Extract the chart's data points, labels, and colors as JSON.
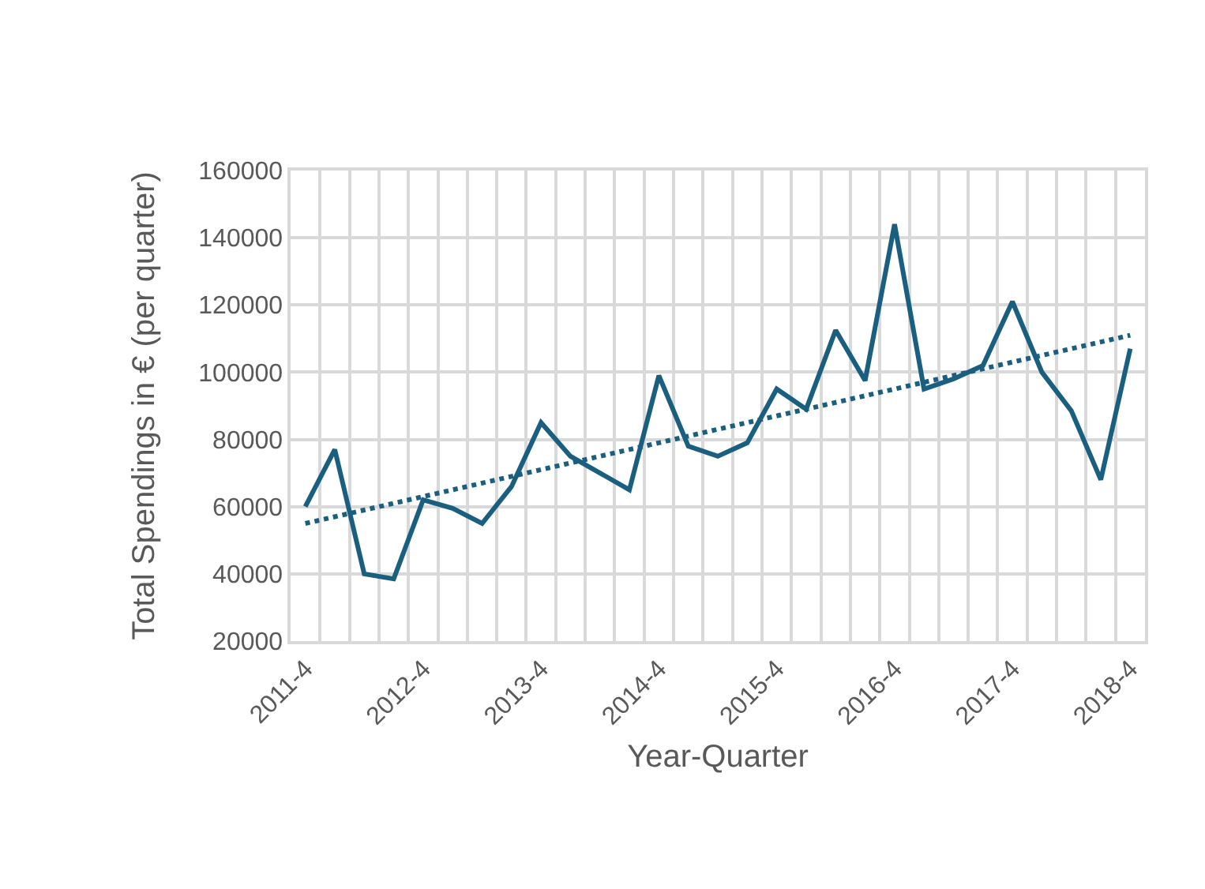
{
  "chart_data": {
    "type": "line",
    "xlabel": "Year-Quarter",
    "ylabel": "Total Spendings in € (per quarter)",
    "categories": [
      "2011-4",
      null,
      null,
      null,
      "2012-4",
      null,
      null,
      null,
      "2013-4",
      null,
      null,
      null,
      "2014-4",
      null,
      null,
      null,
      "2015-4",
      null,
      null,
      null,
      "2016-4",
      null,
      null,
      null,
      "2017-4",
      null,
      null,
      null,
      "2018-4"
    ],
    "series": [
      {
        "color": "#1a5e80",
        "line_style": "solid",
        "values": [
          60000,
          77000,
          40000,
          38500,
          62000,
          59500,
          55000,
          66000,
          85000,
          75000,
          70000,
          65000,
          99000,
          78000,
          75000,
          79000,
          95000,
          89000,
          112500,
          97500,
          144000,
          95000,
          98000,
          102000,
          121000,
          100000,
          88500,
          68000,
          107000
        ]
      },
      {
        "color": "#1a5e80",
        "line_style": "dotted",
        "values": [
          55000,
          57000,
          59000,
          61000,
          63000,
          65000,
          67000,
          69000,
          71000,
          73000,
          75000,
          77000,
          79000,
          81000,
          83000,
          85000,
          87000,
          89000,
          91000,
          93000,
          95000,
          97000,
          99000,
          101000,
          103000,
          105000,
          107000,
          109000,
          111000
        ]
      }
    ],
    "ylim": [
      20000,
      160000
    ],
    "yticks": [
      20000,
      40000,
      60000,
      80000,
      100000,
      120000,
      140000,
      160000
    ],
    "grid": true,
    "marker": "none"
  }
}
